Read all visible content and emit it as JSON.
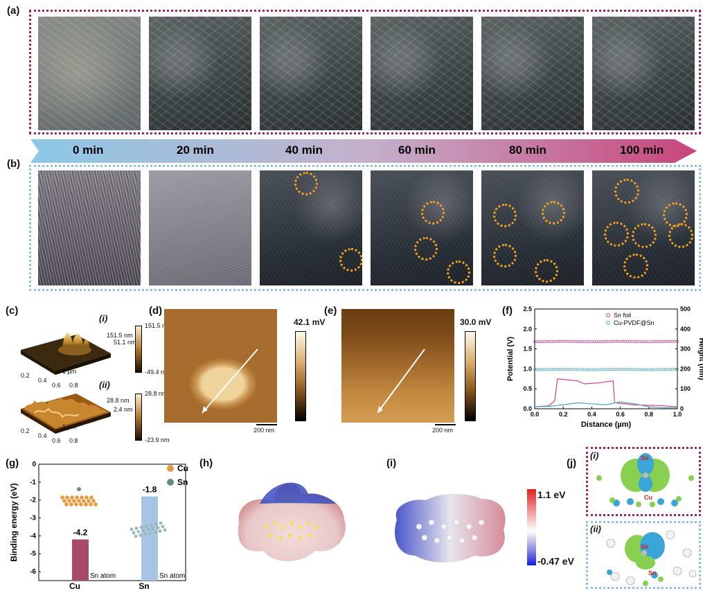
{
  "panels": {
    "a": "(a)",
    "b": "(b)",
    "c": "(c)",
    "d": "(d)",
    "e": "(e)",
    "f": "(f)",
    "g": "(g)",
    "h": "(h)",
    "i": "(i)",
    "j": "(j)"
  },
  "timeline": [
    "0 min",
    "20 min",
    "40 min",
    "60 min",
    "80 min",
    "100 min"
  ],
  "panel_c": {
    "i_label": "(i)",
    "i_scale": [
      "151.5 nm",
      "51.1 nm",
      "-49.4 nm"
    ],
    "i_z": "151.5 nm",
    "ii_label": "(ii)",
    "ii_scale": [
      "28.8 nm",
      "2.4 nm",
      "-23.9 nm"
    ],
    "ii_z": "28.8 nm",
    "axis_ticks": [
      "0.2",
      "0.4",
      "0.6",
      "0.8",
      "1 µm",
      "0.2",
      "0.4",
      "0.6",
      "0.8",
      "1 µm"
    ]
  },
  "panel_d": {
    "scale": "42.1 mV",
    "bar": "200 nm"
  },
  "panel_e": {
    "scale": "30.0 mV",
    "bar": "200 nm"
  },
  "panel_h_i": {
    "cbar_max": "1.1 eV",
    "cbar_min": "-0.47 eV"
  },
  "panel_j": {
    "i": "(i)",
    "ii": "(ii)",
    "sn": "Sn",
    "cu": "Cu"
  },
  "colors": {
    "red_frame": "#a2245a",
    "blue_frame": "#8cc4df",
    "sn_foil": "#d23f8c",
    "cu_pvdf": "#4aa6c8",
    "circle": "#f5a11c"
  },
  "chart_data": [
    {
      "type": "line",
      "panel": "f",
      "xlabel": "Distance (µm)",
      "ylabel": "Potential (V)",
      "y2label": "Height (nm)",
      "xlim": [
        0.0,
        1.0
      ],
      "ylim": [
        0.0,
        2.5
      ],
      "y2lim": [
        0,
        500
      ],
      "xticks": [
        "0.0",
        "0.2",
        "0.4",
        "0.6",
        "0.8",
        "1.0"
      ],
      "yticks": [
        "0.0",
        "0.5",
        "1.0",
        "1.5",
        "2.0",
        "2.5"
      ],
      "y2ticks": [
        "0",
        "100",
        "200",
        "300",
        "400",
        "500"
      ],
      "legend": [
        "Sn foil",
        "Cu-PVDF@Sn"
      ],
      "series": [
        {
          "name": "Sn foil",
          "axis": "potential",
          "x": [
            0.0,
            0.2,
            0.4,
            0.6,
            0.8,
            1.0
          ],
          "values": [
            1.68,
            1.69,
            1.68,
            1.69,
            1.68,
            1.69
          ]
        },
        {
          "name": "Cu-PVDF@Sn",
          "axis": "potential",
          "x": [
            0.0,
            0.2,
            0.4,
            0.6,
            0.8,
            1.0
          ],
          "values": [
            0.98,
            0.99,
            0.98,
            0.99,
            0.98,
            0.99
          ]
        },
        {
          "name": "Sn foil",
          "axis": "height",
          "x": [
            0.0,
            0.1,
            0.14,
            0.16,
            0.3,
            0.35,
            0.45,
            0.55,
            0.56,
            0.7,
            0.9,
            1.0
          ],
          "values": [
            10,
            15,
            40,
            150,
            140,
            125,
            130,
            140,
            30,
            20,
            15,
            10
          ]
        },
        {
          "name": "Cu-PVDF@Sn",
          "axis": "height",
          "x": [
            0.0,
            0.1,
            0.2,
            0.3,
            0.4,
            0.5,
            0.6,
            0.7,
            0.8,
            0.9,
            1.0
          ],
          "values": [
            10,
            12,
            20,
            30,
            25,
            20,
            35,
            25,
            10,
            5,
            5
          ]
        }
      ]
    },
    {
      "type": "bar",
      "panel": "g",
      "ylabel": "Binding energy (eV)",
      "categories": [
        "Cu",
        "Sn"
      ],
      "values": [
        -4.2,
        -1.8
      ],
      "value_labels": [
        "-4.2",
        "-1.8"
      ],
      "yticks": [
        "0",
        "-1",
        "-2",
        "-3",
        "-4",
        "-5",
        "-6"
      ],
      "ylim": [
        -6.5,
        0
      ],
      "legend": [
        "Cu",
        "Sn"
      ],
      "annotations": [
        "Sn atom",
        "Sn atom"
      ]
    }
  ]
}
